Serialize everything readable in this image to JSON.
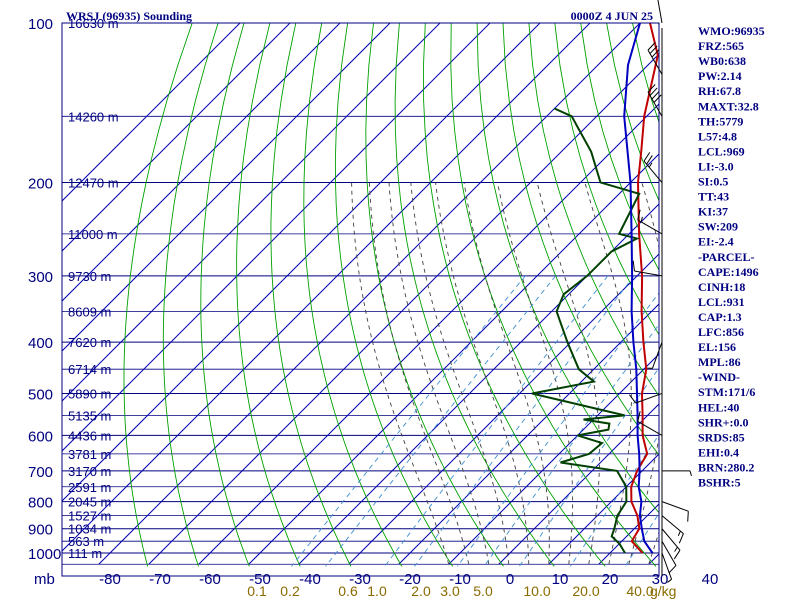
{
  "header": {
    "station": "WRSJ (96935) Sounding",
    "time": "0000Z  4 JUN 25"
  },
  "pressure_axis": {
    "unit": "mb",
    "levels": [
      100,
      200,
      300,
      400,
      500,
      600,
      700,
      800,
      900,
      1000
    ],
    "labels": [
      "100",
      "200",
      "300",
      "400",
      "500",
      "600",
      "700",
      "800",
      "900",
      "1000"
    ]
  },
  "height_labels": [
    {
      "p": 100,
      "text": "16630 m"
    },
    {
      "p": 150,
      "text": "14260 m"
    },
    {
      "p": 200,
      "text": "12470 m"
    },
    {
      "p": 250,
      "text": "11000 m"
    },
    {
      "p": 300,
      "text": "9730 m"
    },
    {
      "p": 350,
      "text": "8609 m"
    },
    {
      "p": 400,
      "text": "7620 m"
    },
    {
      "p": 450,
      "text": "6714 m"
    },
    {
      "p": 500,
      "text": "5890 m"
    },
    {
      "p": 550,
      "text": "5135 m"
    },
    {
      "p": 600,
      "text": "4436 m"
    },
    {
      "p": 650,
      "text": "3781 m"
    },
    {
      "p": 700,
      "text": "3170 m"
    },
    {
      "p": 750,
      "text": "2591 m"
    },
    {
      "p": 800,
      "text": "2045 m"
    },
    {
      "p": 850,
      "text": "1527 m"
    },
    {
      "p": 900,
      "text": "1034 m"
    },
    {
      "p": 950,
      "text": "563 m"
    },
    {
      "p": 1000,
      "text": "111 m"
    }
  ],
  "temp_axis": {
    "unit": "C",
    "ticks": [
      -80,
      -70,
      -60,
      -50,
      -40,
      -30,
      -20,
      -10,
      0,
      10,
      20,
      30,
      40
    ],
    "labels": [
      "-80",
      "-70",
      "-60",
      "-50",
      "-40",
      "-30",
      "-20",
      "-10",
      "0",
      "10",
      "20",
      "30",
      "40"
    ]
  },
  "mixing_ratio_labels": [
    "0.1",
    "0.2",
    "0.6",
    "1.0",
    "2.0",
    "3.0",
    "5.0",
    "10.0",
    "20.0",
    "40.0"
  ],
  "mixing_ratio_unit": "g/kg",
  "indices": [
    "WMO:96935",
    "FRZ:565",
    "WB0:638",
    "PW:2.14",
    "RH:67.8",
    "MAXT:32.8",
    "TH:5779",
    "L57:4.8",
    "LCL:969",
    "LI:-3.0",
    "SI:0.5",
    "TT:43",
    "KI:37",
    "SW:209",
    "EI:-2.4",
    "-PARCEL-",
    "CAPE:1496",
    "CINH:18",
    "LCL:931",
    "CAP:1.3",
    "LFC:856",
    "EL:156",
    "MPL:86",
    "-WIND-",
    "STM:171/6",
    "HEL:40",
    "SHR+:0.0",
    "SRDS:85",
    "EHI:0.4",
    "BRN:280.2",
    "BSHR:5"
  ],
  "colors": {
    "frame": "#000080",
    "isotherm": "#0000b0",
    "dry_adiabat": "#00a000",
    "moist_adiabat": "#404040",
    "mixing_ratio": "#3f8fd0",
    "temperature": "#c00000",
    "dewpoint": "#004000",
    "parcel": "#0000c0",
    "wind": "#000000"
  },
  "chart_data": {
    "type": "line",
    "title": "WRSJ (96935) Sounding",
    "xlabel": "",
    "ylabel": "mb",
    "xlim": [
      -80,
      40
    ],
    "ylim": [
      1000,
      100
    ],
    "series": [
      {
        "name": "",
        "kind": "temperature",
        "points": [
          [
            1000,
            26.5
          ],
          [
            950,
            22
          ],
          [
            900,
            21
          ],
          [
            850,
            18
          ],
          [
            800,
            14
          ],
          [
            750,
            11
          ],
          [
            700,
            9
          ],
          [
            650,
            7.6
          ],
          [
            600,
            3
          ],
          [
            550,
            -1
          ],
          [
            500,
            -5.5
          ],
          [
            450,
            -9.5
          ],
          [
            400,
            -15.5
          ],
          [
            350,
            -22
          ],
          [
            300,
            -29
          ],
          [
            250,
            -38
          ],
          [
            200,
            -48.5
          ],
          [
            175,
            -54
          ],
          [
            150,
            -60.5
          ],
          [
            125,
            -67
          ],
          [
            115,
            -70
          ],
          [
            100,
            -78
          ]
        ]
      },
      {
        "name": "",
        "kind": "dewpoint",
        "points": [
          [
            1000,
            23
          ],
          [
            960,
            20
          ],
          [
            930,
            17
          ],
          [
            900,
            16
          ],
          [
            850,
            14
          ],
          [
            800,
            13
          ],
          [
            750,
            10
          ],
          [
            700,
            5
          ],
          [
            675,
            -8
          ],
          [
            650,
            -4
          ],
          [
            620,
            -3.6
          ],
          [
            600,
            -10
          ],
          [
            585,
            -5
          ],
          [
            570,
            -6
          ],
          [
            560,
            -12
          ],
          [
            550,
            -4.6
          ],
          [
            500,
            -27.5
          ],
          [
            475,
            -17.5
          ],
          [
            450,
            -23
          ],
          [
            400,
            -30.7
          ],
          [
            350,
            -39
          ],
          [
            325,
            -41
          ],
          [
            300,
            -40
          ],
          [
            270,
            -40
          ],
          [
            255,
            -37.5
          ],
          [
            250,
            -42
          ],
          [
            210,
            -46
          ],
          [
            200,
            -56
          ],
          [
            175,
            -64
          ],
          [
            150,
            -75
          ],
          [
            145,
            -80
          ]
        ]
      },
      {
        "name": "",
        "kind": "parcel",
        "points": [
          [
            1000,
            28.5
          ],
          [
            950,
            24.5
          ],
          [
            900,
            21.5
          ],
          [
            850,
            18.5
          ],
          [
            800,
            16
          ],
          [
            750,
            12.5
          ],
          [
            700,
            9.5
          ],
          [
            650,
            6
          ],
          [
            600,
            2
          ],
          [
            550,
            -2
          ],
          [
            500,
            -6.5
          ],
          [
            450,
            -11.5
          ],
          [
            400,
            -17.5
          ],
          [
            350,
            -24
          ],
          [
            300,
            -31
          ],
          [
            250,
            -39.5
          ],
          [
            200,
            -50
          ],
          [
            150,
            -64.5
          ],
          [
            120,
            -74
          ],
          [
            100,
            -80
          ]
        ]
      }
    ],
    "winds": [
      {
        "p": 1000,
        "dir": 160,
        "spd": 5
      },
      {
        "p": 950,
        "dir": 150,
        "spd": 10
      },
      {
        "p": 900,
        "dir": 140,
        "spd": 15
      },
      {
        "p": 850,
        "dir": 130,
        "spd": 15
      },
      {
        "p": 800,
        "dir": 110,
        "spd": 10
      },
      {
        "p": 700,
        "dir": 90,
        "spd": 5
      },
      {
        "p": 600,
        "dir": 300,
        "spd": 10
      },
      {
        "p": 500,
        "dir": 250,
        "spd": 10
      },
      {
        "p": 400,
        "dir": 200,
        "spd": 5
      },
      {
        "p": 300,
        "dir": 280,
        "spd": 10
      },
      {
        "p": 250,
        "dir": 300,
        "spd": 15
      },
      {
        "p": 200,
        "dir": 320,
        "spd": 25
      },
      {
        "p": 150,
        "dir": 330,
        "spd": 40
      },
      {
        "p": 125,
        "dir": 330,
        "spd": 30
      },
      {
        "p": 100,
        "dir": 350,
        "spd": 20
      }
    ]
  }
}
